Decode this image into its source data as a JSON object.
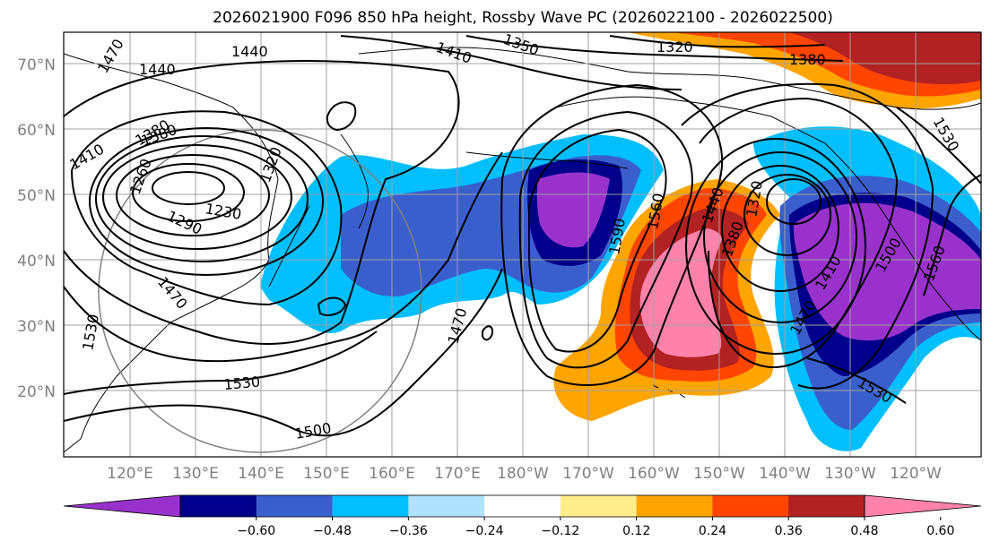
{
  "title": "2026021900 F096 850 hPa height, Rossby Wave PC (2026022100 - 2026022500)",
  "lat_labels": [
    "70°N",
    "60°N",
    "50°N",
    "40°N",
    "30°N",
    "20°N"
  ],
  "lon_labels": [
    "120°E",
    "130°E",
    "140°E",
    "150°E",
    "160°E",
    "170°E",
    "180°W",
    "170°W",
    "160°W",
    "150°W",
    "140°W",
    "130°W",
    "120°W"
  ],
  "colorbar": {
    "ticks": [
      "−0.60",
      "−0.48",
      "−0.36",
      "−0.24",
      "−0.12",
      "0.12",
      "0.24",
      "0.36",
      "0.48",
      "0.60"
    ],
    "colors": [
      "#9932cc",
      "#00008b",
      "#3a5fcd",
      "#00bfff",
      "#b0e2ff",
      "#ffffff",
      "#ffec8b",
      "#ffa500",
      "#ff4500",
      "#b22222",
      "#ff82ab"
    ]
  },
  "contour_labels": [
    "1470",
    "1440",
    "1440",
    "1410",
    "1380",
    "1350",
    "1320",
    "1380",
    "1530",
    "1410",
    "1380",
    "1260",
    "1290",
    "1230",
    "1320",
    "1470",
    "1590",
    "1560",
    "1440",
    "1380",
    "1320",
    "1470",
    "1410",
    "1500",
    "1560",
    "1530",
    "1530",
    "1500",
    "1470",
    "1530"
  ]
}
